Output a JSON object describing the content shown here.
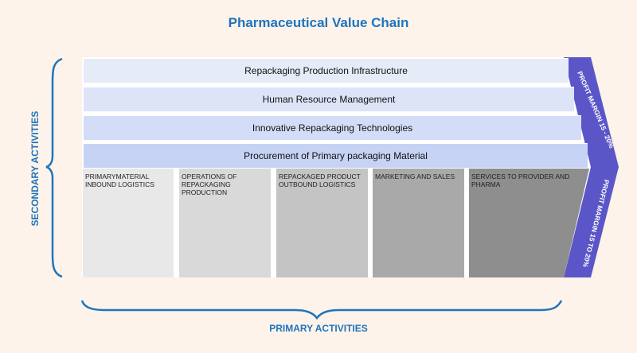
{
  "title": "Pharmaceutical Value Chain",
  "secondary_label": "SECONDARY ACTIVITIES",
  "primary_label": "PRIMARY ACTIVITIES",
  "secondary_activities": [
    "Repackaging Production Infrastructure",
    "Human Resource Management",
    "Innovative Repackaging Technologies",
    "Procurement of Primary packaging Material"
  ],
  "primary_activities": [
    "PRIMARYMATERIAL INBOUND LOGISTICS",
    "OPERATIONS OF REPACKAGING PRODUCTION",
    "REPACKAGED PRODUCT OUTBOUND LOGISTICS",
    "MARKETING AND SALES",
    "SERVICES TO PROVIDER AND PHARMA"
  ],
  "margin_top": "PROFIT MARGIN 15 - 20%",
  "margin_bottom": "PROFIT MARGIN 15 TO 20%",
  "colors": {
    "accent": "#1f74bd",
    "margin_fill": "#5b56c8",
    "row_fills": [
      "#e6ebf8",
      "#dde4f8",
      "#d3ddf7",
      "#c6d3f4"
    ],
    "primary_fills": [
      "#e8e8e8",
      "#d9d9d9",
      "#c4c4c4",
      "#a9a9a9",
      "#8e8e8e"
    ]
  }
}
